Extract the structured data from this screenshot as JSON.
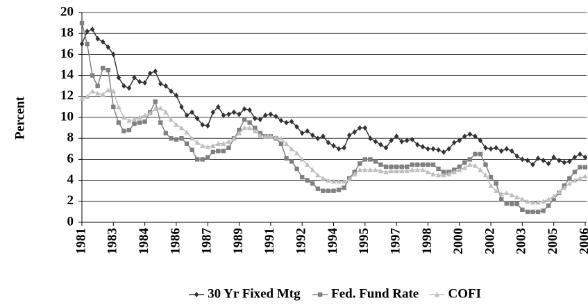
{
  "chart_data": {
    "type": "line",
    "y_label": "Percent",
    "categories": [
      "1981",
      null,
      null,
      null,
      null,
      null,
      "1983",
      null,
      null,
      null,
      null,
      null,
      "1984",
      null,
      null,
      null,
      null,
      null,
      "1986",
      null,
      null,
      null,
      null,
      null,
      "1987",
      null,
      null,
      null,
      null,
      null,
      "1989",
      null,
      null,
      null,
      null,
      null,
      "1991",
      null,
      null,
      null,
      null,
      null,
      "1992",
      null,
      null,
      null,
      null,
      null,
      "1994",
      null,
      null,
      null,
      null,
      null,
      "1995",
      null,
      null,
      null,
      null,
      null,
      "1997",
      null,
      null,
      null,
      null,
      null,
      "1998",
      null,
      null,
      null,
      null,
      null,
      "2000",
      null,
      null,
      null,
      null,
      null,
      "2002",
      null,
      null,
      null,
      null,
      null,
      "2003",
      null,
      null,
      null,
      null,
      null,
      "2005",
      null,
      null,
      null,
      null,
      null,
      "2006"
    ],
    "series": [
      {
        "name": "30 Yr Fixed Mtg",
        "color": "#333333",
        "marker": "diamond",
        "values": [
          17,
          18.2,
          18.4,
          17.5,
          17.2,
          16.7,
          16,
          13.8,
          13,
          12.8,
          13.8,
          13.4,
          13.3,
          14.2,
          14.4,
          13.2,
          13,
          12.5,
          12.1,
          11,
          10.2,
          10.5,
          9.9,
          9.3,
          9.2,
          10.5,
          11,
          10.2,
          10.3,
          10.5,
          10.3,
          10.8,
          10.7,
          9.9,
          9.8,
          10.2,
          10.3,
          10.1,
          9.7,
          9.5,
          9.6,
          9.1,
          8.5,
          8.7,
          8.3,
          8,
          8.2,
          7.6,
          7.3,
          7,
          7.1,
          8.3,
          8.6,
          9,
          9,
          8,
          7.7,
          7.4,
          7.1,
          7.8,
          8.2,
          7.7,
          7.8,
          7.9,
          7.4,
          7.2,
          7,
          7,
          6.9,
          6.7,
          7,
          7.6,
          7.8,
          8.2,
          8.4,
          8.2,
          7.8,
          7.1,
          7,
          7.1,
          6.8,
          7,
          6.8,
          6.3,
          6,
          5.9,
          5.5,
          6.1,
          5.9,
          5.6,
          6.2,
          5.9,
          5.7,
          5.8,
          6.2,
          6.5,
          6.2
        ]
      },
      {
        "name": "Fed. Fund Rate",
        "color": "#808080",
        "marker": "square",
        "values": [
          19,
          17,
          14,
          13,
          14.7,
          14.5,
          11,
          9.5,
          8.7,
          8.8,
          9.4,
          9.5,
          9.6,
          10.5,
          11.5,
          9.5,
          8.5,
          8,
          7.9,
          8,
          7.5,
          6.9,
          6,
          6,
          6.2,
          6.7,
          6.8,
          6.8,
          7.1,
          8,
          8.8,
          9.8,
          9.5,
          9,
          8.5,
          8.2,
          8.2,
          8,
          7.5,
          6.1,
          5.8,
          5.1,
          4.3,
          4,
          3.7,
          3.2,
          3,
          3,
          3,
          3.1,
          3.3,
          4.2,
          4.8,
          5.6,
          6,
          6,
          5.8,
          5.5,
          5.3,
          5.3,
          5.3,
          5.3,
          5.3,
          5.5,
          5.5,
          5.5,
          5.5,
          5.5,
          5.1,
          4.8,
          4.8,
          5,
          5.3,
          5.7,
          6,
          6.5,
          6.5,
          5.5,
          4.3,
          3.7,
          2.2,
          1.8,
          1.75,
          1.75,
          1.2,
          1,
          1,
          1,
          1.1,
          1.6,
          2.2,
          2.8,
          3.5,
          4.2,
          4.8,
          5.25,
          5.25
        ]
      },
      {
        "name": "COFI",
        "color": "#bfbfbf",
        "marker": "triangle",
        "values": [
          11.8,
          12,
          12.5,
          12.3,
          12.2,
          12.6,
          12.5,
          11,
          10,
          9.7,
          9.8,
          10,
          10.2,
          10.4,
          10.8,
          10.9,
          10.5,
          9.8,
          9.3,
          9,
          8.6,
          8,
          7.6,
          7.3,
          7.2,
          7.3,
          7.5,
          7.5,
          7.7,
          8,
          8.5,
          9,
          9,
          8.7,
          8.3,
          8.2,
          8.2,
          8.1,
          8,
          7.5,
          7,
          6.6,
          6,
          5.5,
          5,
          4.5,
          4.2,
          4,
          3.9,
          3.9,
          3.9,
          4.1,
          4.6,
          5,
          5,
          5,
          5,
          4.9,
          4.8,
          4.9,
          4.9,
          4.9,
          4.9,
          5,
          5,
          5,
          4.8,
          4.6,
          4.5,
          4.5,
          4.6,
          4.8,
          5,
          5.2,
          5.5,
          5.4,
          5,
          4.5,
          3.5,
          3,
          2.7,
          2.8,
          2.6,
          2.4,
          2.2,
          2,
          1.9,
          1.9,
          2,
          2.2,
          2.5,
          2.9,
          3.3,
          3.7,
          4,
          4.2,
          4.4
        ]
      }
    ],
    "ylim": [
      0,
      20
    ],
    "yticks": [
      0,
      2,
      4,
      6,
      8,
      10,
      12,
      14,
      16,
      18,
      20
    ],
    "grid": true,
    "legend": "bottom"
  }
}
